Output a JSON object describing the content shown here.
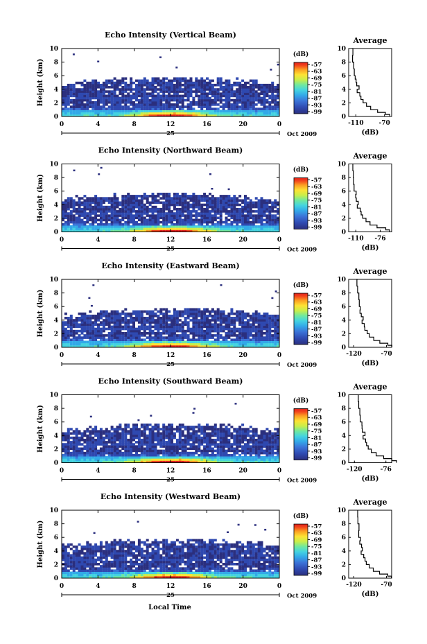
{
  "figure": {
    "xlabel_bottom": "Local Time",
    "date_day": "25",
    "date_month_year": "Oct 2009"
  },
  "chart_data": {
    "type": "heatmap",
    "colorbar": {
      "unit_label": "(dB)",
      "tick_labels": [
        "-57",
        "-63",
        "-69",
        "-75",
        "-81",
        "-87",
        "-93",
        "-99"
      ],
      "range": [
        -99,
        -57
      ],
      "colors": [
        "#2b2f7e",
        "#2f49b0",
        "#3b74d8",
        "#33a9e8",
        "#44d3e0",
        "#6fe8a0",
        "#c9ee4a",
        "#fde234",
        "#fc9e22",
        "#f2461c",
        "#e01f1a"
      ]
    },
    "x_axis": {
      "ticks": [
        "0",
        "4",
        "8",
        "12",
        "16",
        "20",
        "0"
      ],
      "range": [
        0,
        24
      ]
    },
    "y_axis": {
      "label": "Height (km)",
      "ticks": [
        "0",
        "2",
        "4",
        "6",
        "8",
        "10"
      ],
      "range": [
        0,
        10
      ]
    },
    "profile": {
      "title": "Average",
      "xlabel": "(dB)"
    },
    "panels": [
      {
        "title": "Echo Intensity (Vertical Beam)",
        "profile_xticks": [
          "-110",
          "-70"
        ],
        "profile_xrange": [
          -120,
          -60
        ]
      },
      {
        "title": "Echo Intensity (Northward Beam)",
        "profile_xticks": [
          "-110",
          "-76"
        ],
        "profile_xrange": [
          -120,
          -60
        ]
      },
      {
        "title": "Echo Intensity (Eastward Beam)",
        "profile_xticks": [
          "-120",
          "-70"
        ],
        "profile_xrange": [
          -128,
          -62
        ]
      },
      {
        "title": "Echo Intensity (Southward Beam)",
        "profile_xticks": [
          "-120",
          "-76"
        ],
        "profile_xrange": [
          -128,
          -68
        ]
      },
      {
        "title": "Echo Intensity (Westward Beam)",
        "profile_xticks": [
          "-120",
          "-70"
        ],
        "profile_xrange": [
          -128,
          -62
        ]
      }
    ],
    "average_profile": {
      "height_km": [
        0,
        0.3,
        0.6,
        1.0,
        1.5,
        2.0,
        2.5,
        3.0,
        3.5,
        4.0,
        4.5,
        5.0,
        5.5,
        6.0,
        7.0,
        8.0,
        9.0,
        10.0
      ],
      "dB": [
        -62,
        -68,
        -80,
        -90,
        -96,
        -100,
        -103,
        -104,
        -108,
        -106,
        -109,
        -110,
        -110,
        -112,
        -113,
        -114,
        -115,
        -115
      ]
    }
  }
}
